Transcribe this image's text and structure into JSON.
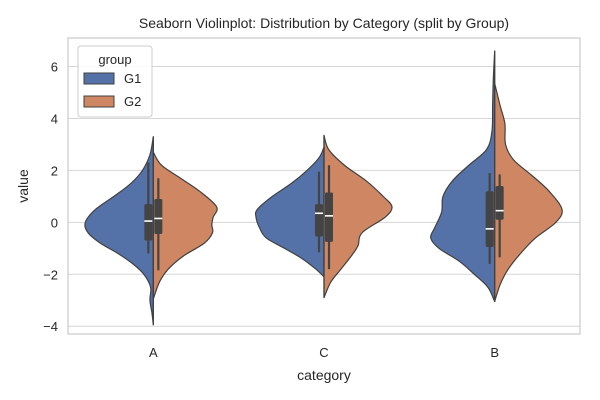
{
  "chart_data": {
    "type": "violin",
    "title": "Seaborn Violinplot: Distribution by Category (split by Group)",
    "xlabel": "category",
    "ylabel": "value",
    "categories": [
      "A",
      "C",
      "B"
    ],
    "ylim": [
      -4.3,
      7.1
    ],
    "yticks": [
      -4,
      -2,
      0,
      2,
      4,
      6
    ],
    "ytick_labels": [
      "−4",
      "−2",
      "0",
      "2",
      "4",
      "6"
    ],
    "grid": true,
    "split": true,
    "legend": {
      "title": "group",
      "placement": "top-left",
      "entries": [
        {
          "label": "G1",
          "color": "#5572A8"
        },
        {
          "label": "G2",
          "color": "#CE8762"
        }
      ]
    },
    "series": [
      {
        "name": "G1",
        "color": "#5572A8",
        "side": "left",
        "violins": [
          {
            "category": "A",
            "range": [
              -3.95,
              3.3
            ],
            "profile": [
              [
                3.3,
                0
              ],
              [
                2.6,
                0.05
              ],
              [
                2.0,
                0.16
              ],
              [
                1.5,
                0.33
              ],
              [
                1.0,
                0.58
              ],
              [
                0.5,
                0.85
              ],
              [
                0.0,
                1.0
              ],
              [
                -0.4,
                0.96
              ],
              [
                -0.8,
                0.78
              ],
              [
                -1.2,
                0.52
              ],
              [
                -1.6,
                0.3
              ],
              [
                -2.0,
                0.14
              ],
              [
                -2.5,
                0.04
              ],
              [
                -3.0,
                0.05
              ],
              [
                -3.5,
                0.02
              ],
              [
                -3.95,
                0
              ]
            ],
            "box": {
              "whisker_low": -1.2,
              "q1": -0.7,
              "median": 0.05,
              "q3": 0.7,
              "whisker_high": 2.3
            }
          },
          {
            "category": "C",
            "range": [
              -2.1,
              2.9
            ],
            "profile": [
              [
                2.9,
                0
              ],
              [
                2.5,
                0.07
              ],
              [
                2.0,
                0.25
              ],
              [
                1.5,
                0.48
              ],
              [
                1.0,
                0.76
              ],
              [
                0.5,
                0.98
              ],
              [
                0.2,
                1.0
              ],
              [
                -0.2,
                0.95
              ],
              [
                -0.6,
                0.85
              ],
              [
                -1.0,
                0.58
              ],
              [
                -1.4,
                0.32
              ],
              [
                -1.8,
                0.12
              ],
              [
                -2.1,
                0
              ]
            ],
            "box": {
              "whisker_low": -1.15,
              "q1": -0.55,
              "median": 0.35,
              "q3": 0.7,
              "whisker_high": 1.95
            }
          },
          {
            "category": "B",
            "range": [
              -3.05,
              6.6
            ],
            "profile": [
              [
                6.6,
                0
              ],
              [
                5.5,
                0.02
              ],
              [
                4.5,
                0.03
              ],
              [
                3.5,
                0.04
              ],
              [
                2.8,
                0.12
              ],
              [
                2.2,
                0.38
              ],
              [
                1.6,
                0.62
              ],
              [
                1.0,
                0.76
              ],
              [
                0.4,
                0.78
              ],
              [
                -0.2,
                0.88
              ],
              [
                -0.6,
                0.94
              ],
              [
                -1.0,
                0.82
              ],
              [
                -1.5,
                0.52
              ],
              [
                -2.0,
                0.3
              ],
              [
                -2.5,
                0.1
              ],
              [
                -3.05,
                0
              ]
            ],
            "box": {
              "whisker_low": -1.6,
              "q1": -0.95,
              "median": -0.25,
              "q3": 1.2,
              "whisker_high": 1.9
            }
          }
        ]
      },
      {
        "name": "G2",
        "color": "#CE8762",
        "side": "right",
        "violins": [
          {
            "category": "A",
            "range": [
              -2.95,
              2.7
            ],
            "profile": [
              [
                2.7,
                0
              ],
              [
                2.2,
                0.12
              ],
              [
                1.7,
                0.4
              ],
              [
                1.2,
                0.68
              ],
              [
                0.6,
                0.93
              ],
              [
                0.2,
                0.88
              ],
              [
                -0.1,
                0.86
              ],
              [
                -0.4,
                0.87
              ],
              [
                -0.8,
                0.75
              ],
              [
                -1.3,
                0.44
              ],
              [
                -1.8,
                0.22
              ],
              [
                -2.3,
                0.09
              ],
              [
                -2.95,
                0
              ]
            ],
            "box": {
              "whisker_low": -1.85,
              "q1": -0.45,
              "median": 0.15,
              "q3": 0.9,
              "whisker_high": 1.7
            }
          },
          {
            "category": "C",
            "range": [
              -2.9,
              3.35
            ],
            "profile": [
              [
                3.35,
                0
              ],
              [
                2.8,
                0.07
              ],
              [
                2.2,
                0.3
              ],
              [
                1.6,
                0.62
              ],
              [
                1.0,
                0.87
              ],
              [
                0.6,
                1.0
              ],
              [
                0.2,
                0.9
              ],
              [
                -0.4,
                0.56
              ],
              [
                -0.9,
                0.5
              ],
              [
                -1.3,
                0.4
              ],
              [
                -1.8,
                0.25
              ],
              [
                -2.3,
                0.1
              ],
              [
                -2.9,
                0
              ]
            ],
            "box": {
              "whisker_low": -1.8,
              "q1": -0.75,
              "median": 0.25,
              "q3": 1.15,
              "whisker_high": 2.2
            }
          },
          {
            "category": "B",
            "range": [
              -3.05,
              5.35
            ],
            "profile": [
              [
                5.35,
                0
              ],
              [
                4.5,
                0.08
              ],
              [
                3.8,
                0.15
              ],
              [
                3.0,
                0.16
              ],
              [
                2.4,
                0.28
              ],
              [
                1.8,
                0.55
              ],
              [
                1.2,
                0.8
              ],
              [
                0.5,
                0.99
              ],
              [
                0.0,
                0.9
              ],
              [
                -0.6,
                0.6
              ],
              [
                -1.2,
                0.38
              ],
              [
                -1.8,
                0.2
              ],
              [
                -2.4,
                0.08
              ],
              [
                -3.05,
                0
              ]
            ],
            "box": {
              "whisker_low": -1.35,
              "q1": 0.1,
              "median": 0.45,
              "q3": 1.4,
              "whisker_high": 1.85
            }
          }
        ]
      }
    ]
  }
}
